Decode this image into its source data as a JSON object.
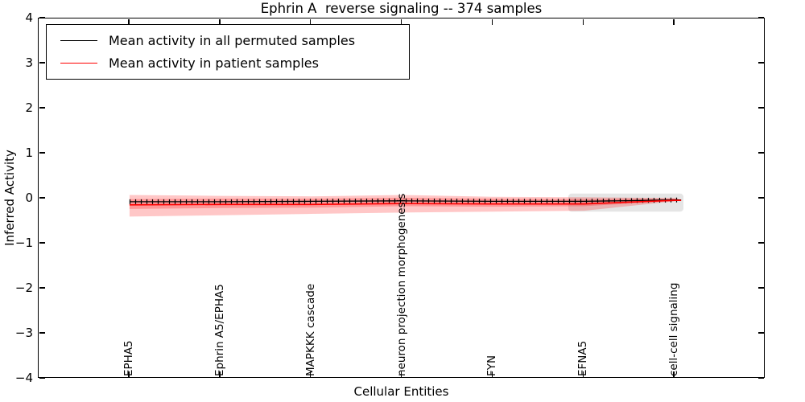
{
  "title": "Ephrin A  reverse signaling -- 374 samples",
  "axes": {
    "xlabel": "Cellular Entities",
    "ylabel": "Inferred Activity"
  },
  "legend": {
    "items": [
      {
        "label": "Mean activity in all permuted samples",
        "color": "#000000"
      },
      {
        "label": "Mean activity in patient samples",
        "color": "#ff0000"
      }
    ],
    "position": "upper left"
  },
  "chart_data": {
    "type": "line",
    "title": "Ephrin A  reverse signaling -- 374 samples",
    "xlabel": "Cellular Entities",
    "ylabel": "Inferred Activity",
    "ylim": [
      -4,
      4
    ],
    "ytick_values": [
      4,
      3,
      2,
      1,
      0,
      -1,
      -2,
      -3,
      -4
    ],
    "ytick_labels": [
      "4",
      "3",
      "2",
      "1",
      "0",
      "−1",
      "−2",
      "−3",
      "−4"
    ],
    "grid": false,
    "legend_position": "upper left",
    "categories": [
      "EPHA5",
      "Ephrin A5/EPHA5",
      "MAPKKK cascade",
      "neuron projection morphogenesis",
      "FYN",
      "EFNA5",
      "cell-cell signaling"
    ],
    "series": [
      {
        "name": "Mean activity in all permuted samples",
        "color": "#000000",
        "marker": "plus",
        "values": [
          -0.07,
          -0.07,
          -0.06,
          -0.05,
          -0.06,
          -0.06,
          -0.03
        ]
      },
      {
        "name": "Mean activity in patient samples",
        "color": "#ff0000",
        "marker": "none",
        "values": [
          -0.14,
          -0.13,
          -0.13,
          -0.11,
          -0.12,
          -0.12,
          -0.04
        ]
      }
    ],
    "bands": {
      "patient_outer": {
        "color": "rgba(255,0,0,0.22)",
        "top": [
          0.08,
          0.06,
          0.05,
          0.08,
          0.04,
          0.03,
          0.01
        ],
        "bottom": [
          -0.4,
          -0.37,
          -0.34,
          -0.31,
          -0.29,
          -0.27,
          -0.06
        ]
      },
      "patient_inner": {
        "color": "rgba(255,0,0,0.24)",
        "top": [
          -0.01,
          0.0,
          0.0,
          0.02,
          0.0,
          -0.01,
          0.0
        ],
        "bottom": [
          -0.23,
          -0.21,
          -0.2,
          -0.17,
          -0.18,
          -0.17,
          -0.05
        ]
      },
      "permuted_range": {
        "color": "rgba(0,0,0,0.10)",
        "top": 0.11,
        "bottom": -0.29
      }
    }
  }
}
